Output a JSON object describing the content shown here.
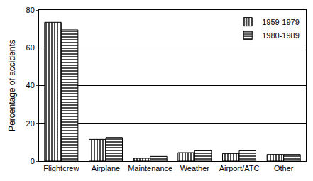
{
  "chart_data": {
    "type": "bar",
    "categories": [
      "Flightcrew",
      "Airplane",
      "Maintenance",
      "Weather",
      "Airport/ATC",
      "Other"
    ],
    "series": [
      {
        "name": "1959-1979",
        "color": "#000000",
        "marker": "vertical_hatch",
        "values": [
          73.5,
          11.5,
          1.5,
          4.5,
          4,
          3.5
        ]
      },
      {
        "name": "1980-1989",
        "color": "#000000",
        "marker": "horizontal_hatch",
        "values": [
          69.5,
          12.5,
          2.5,
          5.5,
          5.5,
          3.5
        ]
      }
    ],
    "y_label": "Percentage of accidents",
    "ylim": [
      0,
      80
    ],
    "yticks": [
      0,
      20,
      40,
      60,
      80
    ],
    "grid": true,
    "legend": "top right"
  }
}
